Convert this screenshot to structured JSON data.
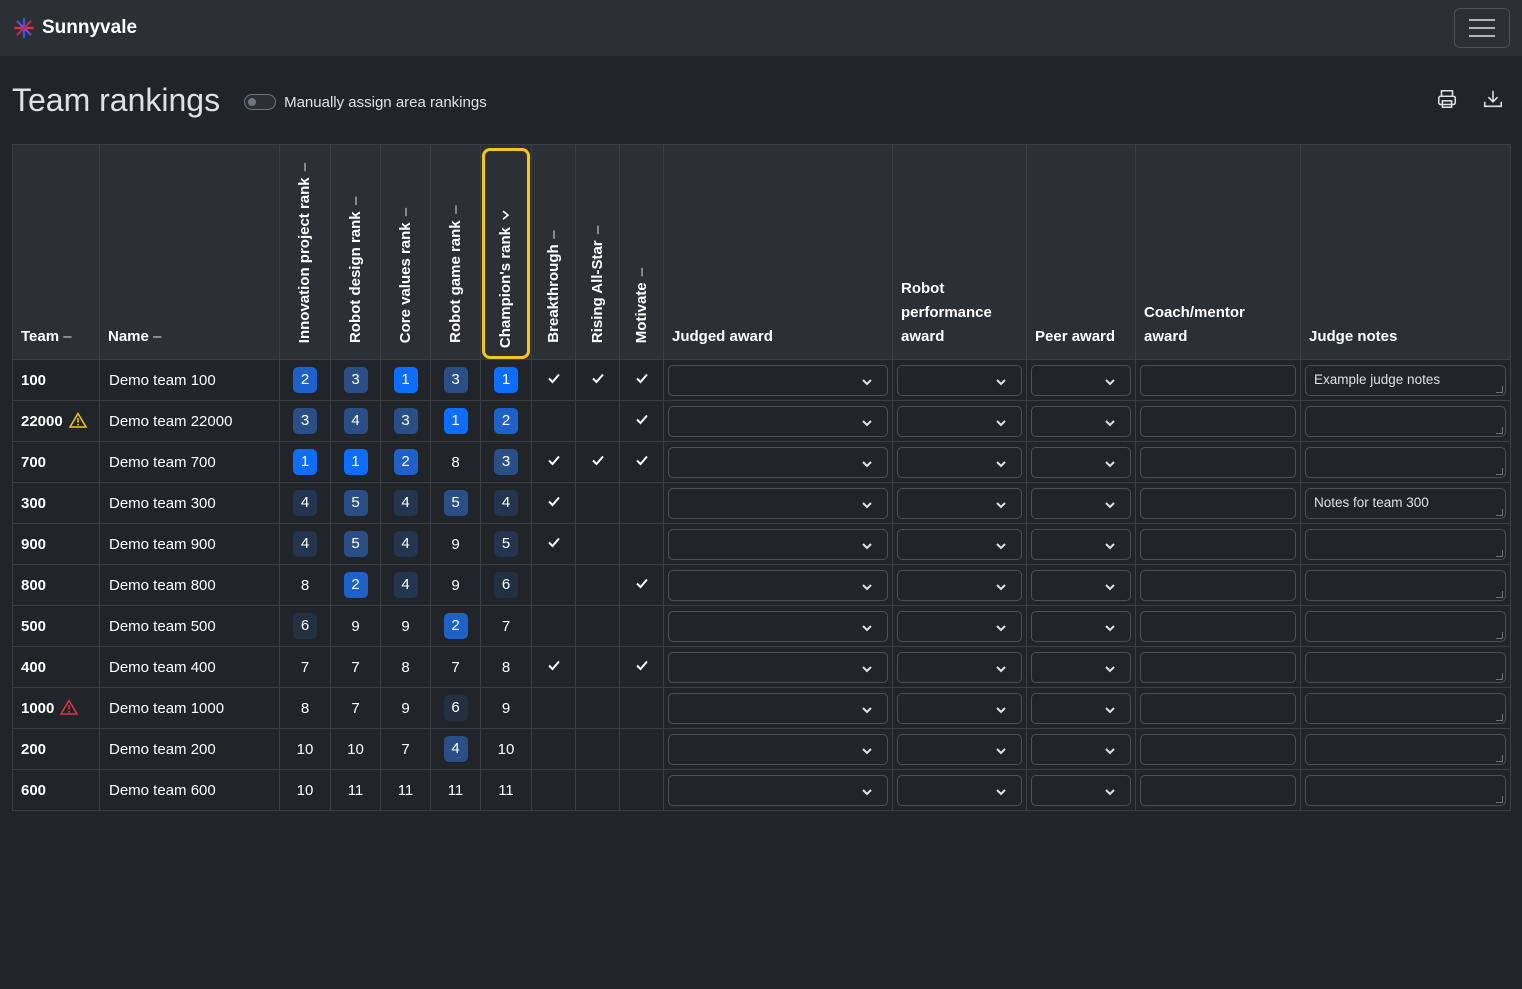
{
  "app": {
    "brand": "Sunnyvale"
  },
  "page": {
    "title": "Team rankings",
    "toggle_label": "Manually assign area rankings"
  },
  "columns": {
    "team": "Team",
    "name": "Name",
    "innovation": "Innovation project rank",
    "robot_design": "Robot design rank",
    "core_values": "Core values rank",
    "robot_game": "Robot game rank",
    "champions": "Champion's rank",
    "breakthrough": "Breakthrough",
    "rising_all_star": "Rising All-Star",
    "motivate": "Motivate",
    "judged_award": "Judged award",
    "robot_performance_award": "Robot performance award",
    "peer_award": "Peer award",
    "coach_mentor_award": "Coach/mentor award",
    "judge_notes": "Judge notes"
  },
  "sort_dash": "–",
  "rows": [
    {
      "team": "100",
      "name": "Demo team 100",
      "warn": "",
      "ranks": [
        "2",
        "3",
        "1",
        "3",
        "1"
      ],
      "levels": [
        2,
        3,
        1,
        3,
        1
      ],
      "bt": true,
      "ras": true,
      "mot": true,
      "notes": "Example judge notes"
    },
    {
      "team": "22000",
      "name": "Demo team 22000",
      "warn": "yellow",
      "ranks": [
        "3",
        "4",
        "3",
        "1",
        "2"
      ],
      "levels": [
        3,
        3,
        3,
        1,
        2
      ],
      "bt": false,
      "ras": false,
      "mot": true,
      "notes": ""
    },
    {
      "team": "700",
      "name": "Demo team 700",
      "warn": "",
      "ranks": [
        "1",
        "1",
        "2",
        "8",
        "3"
      ],
      "levels": [
        1,
        1,
        2,
        0,
        3
      ],
      "bt": true,
      "ras": true,
      "mot": true,
      "notes": ""
    },
    {
      "team": "300",
      "name": "Demo team 300",
      "warn": "",
      "ranks": [
        "4",
        "5",
        "4",
        "5",
        "4"
      ],
      "levels": [
        4,
        3,
        4,
        3,
        4
      ],
      "bt": true,
      "ras": false,
      "mot": false,
      "notes": "Notes for team 300"
    },
    {
      "team": "900",
      "name": "Demo team 900",
      "warn": "",
      "ranks": [
        "4",
        "5",
        "4",
        "9",
        "5"
      ],
      "levels": [
        4,
        3,
        4,
        0,
        4
      ],
      "bt": true,
      "ras": false,
      "mot": false,
      "notes": ""
    },
    {
      "team": "800",
      "name": "Demo team 800",
      "warn": "",
      "ranks": [
        "8",
        "2",
        "4",
        "9",
        "6"
      ],
      "levels": [
        0,
        2,
        4,
        0,
        5
      ],
      "bt": false,
      "ras": false,
      "mot": true,
      "notes": ""
    },
    {
      "team": "500",
      "name": "Demo team 500",
      "warn": "",
      "ranks": [
        "6",
        "9",
        "9",
        "2",
        "7"
      ],
      "levels": [
        5,
        0,
        0,
        2,
        0
      ],
      "bt": false,
      "ras": false,
      "mot": false,
      "notes": ""
    },
    {
      "team": "400",
      "name": "Demo team 400",
      "warn": "",
      "ranks": [
        "7",
        "7",
        "8",
        "7",
        "8"
      ],
      "levels": [
        0,
        0,
        0,
        0,
        0
      ],
      "bt": true,
      "ras": false,
      "mot": true,
      "notes": ""
    },
    {
      "team": "1000",
      "name": "Demo team 1000",
      "warn": "red",
      "ranks": [
        "8",
        "7",
        "9",
        "6",
        "9"
      ],
      "levels": [
        0,
        0,
        0,
        5,
        0
      ],
      "bt": false,
      "ras": false,
      "mot": false,
      "notes": ""
    },
    {
      "team": "200",
      "name": "Demo team 200",
      "warn": "",
      "ranks": [
        "10",
        "10",
        "7",
        "4",
        "10"
      ],
      "levels": [
        0,
        0,
        0,
        3,
        0
      ],
      "bt": false,
      "ras": false,
      "mot": false,
      "notes": ""
    },
    {
      "team": "600",
      "name": "Demo team 600",
      "warn": "",
      "ranks": [
        "10",
        "11",
        "11",
        "11",
        "11"
      ],
      "levels": [
        0,
        0,
        0,
        0,
        0
      ],
      "bt": false,
      "ras": false,
      "mot": false,
      "notes": ""
    }
  ],
  "icons": {
    "brand": "sunburst-logo-icon",
    "menu": "hamburger-menu-icon",
    "print": "printer-icon",
    "download": "download-icon",
    "warn_yellow": "#f5c518",
    "warn_red": "#dc3545"
  },
  "colors": {
    "accent": "#0d6efd",
    "champion_highlight": "#f5c518"
  }
}
